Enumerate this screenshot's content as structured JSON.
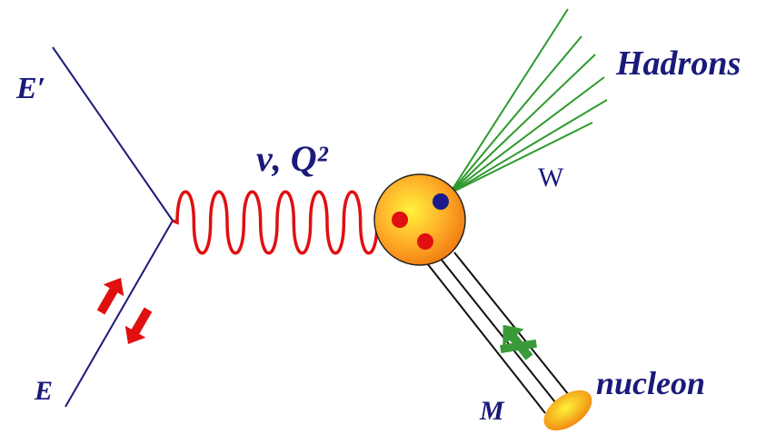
{
  "labels": {
    "e_prime": "E′",
    "e": "E",
    "photon": "ν, Q²",
    "hadrons": "Hadrons",
    "w": "W",
    "nucleon": "nucleon",
    "m": "M"
  }
}
